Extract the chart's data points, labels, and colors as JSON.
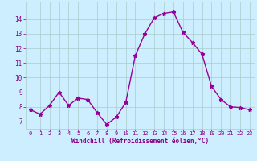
{
  "x": [
    0,
    1,
    2,
    3,
    4,
    5,
    6,
    7,
    8,
    9,
    10,
    11,
    12,
    13,
    14,
    15,
    16,
    17,
    18,
    19,
    20,
    21,
    22,
    23
  ],
  "y": [
    7.8,
    7.5,
    8.1,
    9.0,
    8.1,
    8.6,
    8.5,
    7.6,
    6.8,
    7.3,
    8.3,
    11.5,
    13.0,
    14.1,
    14.4,
    14.5,
    13.1,
    12.4,
    11.6,
    9.4,
    8.5,
    8.0,
    7.95,
    7.8
  ],
  "line_color": "#990099",
  "marker": "*",
  "marker_size": 3.5,
  "line_width": 1.0,
  "background_color": "#cceeff",
  "grid_color": "#aacccc",
  "xlabel": "Windchill (Refroidissement éolien,°C)",
  "xlabel_color": "#880088",
  "tick_color": "#880088",
  "ylim": [
    6.5,
    15.2
  ],
  "xlim": [
    -0.5,
    23.5
  ],
  "yticks": [
    7,
    8,
    9,
    10,
    11,
    12,
    13,
    14
  ],
  "xticks": [
    0,
    1,
    2,
    3,
    4,
    5,
    6,
    7,
    8,
    9,
    10,
    11,
    12,
    13,
    14,
    15,
    16,
    17,
    18,
    19,
    20,
    21,
    22,
    23
  ],
  "fig_bg_color": "#cceeff"
}
